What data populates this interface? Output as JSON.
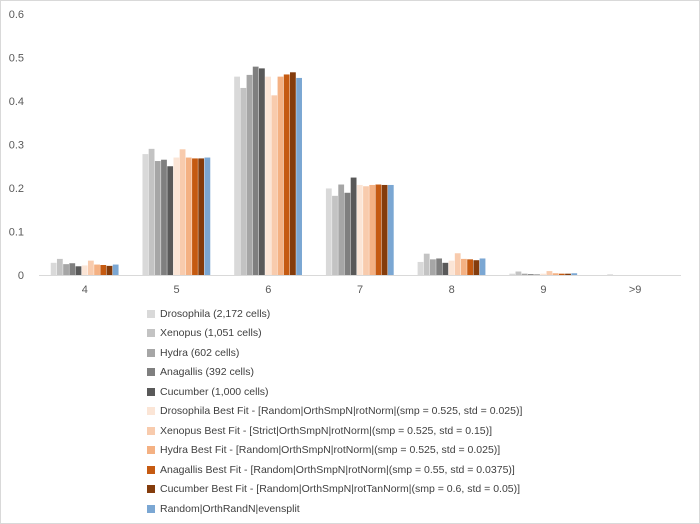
{
  "chart_data": {
    "type": "bar",
    "categories": [
      "4",
      "5",
      "6",
      "7",
      "8",
      "9",
      ">9"
    ],
    "ylim": [
      0,
      0.6
    ],
    "yticks": [
      "0",
      "0.1",
      "0.2",
      "0.3",
      "0.4",
      "0.5",
      "0.6"
    ],
    "grid": false,
    "legend_position": "bottom",
    "series": [
      {
        "name": "Drosophila (2,172 cells)",
        "color": "#d9d9d9",
        "values": [
          0.028,
          0.278,
          0.456,
          0.199,
          0.03,
          0.003,
          0.0
        ]
      },
      {
        "name": "Xenopus (1,051 cells)",
        "color": "#c3c3c3",
        "values": [
          0.037,
          0.29,
          0.43,
          0.182,
          0.049,
          0.008,
          0.001
        ]
      },
      {
        "name": "Hydra (602 cells)",
        "color": "#a6a6a6",
        "values": [
          0.025,
          0.262,
          0.46,
          0.208,
          0.036,
          0.003,
          0.0
        ]
      },
      {
        "name": "Anagallis (392 cells)",
        "color": "#7f7f7f",
        "values": [
          0.027,
          0.265,
          0.479,
          0.189,
          0.038,
          0.002,
          0.0
        ]
      },
      {
        "name": "Cucumber (1,000 cells)",
        "color": "#595959",
        "values": [
          0.02,
          0.25,
          0.475,
          0.224,
          0.028,
          0.001,
          0.0
        ]
      },
      {
        "name": "Drosophila Best Fit - [Random|OrthSmpN|rotNorm|(smp = 0.525, std = 0.025)]",
        "color": "#fbe5d6",
        "values": [
          0.022,
          0.27,
          0.456,
          0.207,
          0.033,
          0.003,
          0.0
        ]
      },
      {
        "name": "Xenopus Best Fit - [Strict|OrthSmpN|rotNorm|(smp = 0.525, std = 0.15)]",
        "color": "#f8cbad",
        "values": [
          0.033,
          0.289,
          0.413,
          0.204,
          0.05,
          0.009,
          0.0
        ]
      },
      {
        "name": "Hydra Best Fit - [Random|OrthSmpN|rotNorm|(smp = 0.525, std = 0.025)]",
        "color": "#f4b183",
        "values": [
          0.024,
          0.27,
          0.456,
          0.207,
          0.037,
          0.004,
          0.0
        ]
      },
      {
        "name": "Anagallis Best Fit - [Random|OrthSmpN|rotNorm|(smp = 0.55, std = 0.0375)]",
        "color": "#c55a11",
        "values": [
          0.023,
          0.268,
          0.461,
          0.208,
          0.036,
          0.003,
          0.0
        ]
      },
      {
        "name": "Cucumber Best Fit - [Random|OrthSmpN|rotTanNorm|(smp = 0.6, std = 0.05)]",
        "color": "#843c0c",
        "values": [
          0.021,
          0.268,
          0.466,
          0.207,
          0.034,
          0.003,
          0.0
        ]
      },
      {
        "name": "Random|OrthRandN|evensplit",
        "color": "#7ba7d3",
        "values": [
          0.024,
          0.27,
          0.453,
          0.207,
          0.038,
          0.004,
          0.0
        ]
      }
    ]
  }
}
